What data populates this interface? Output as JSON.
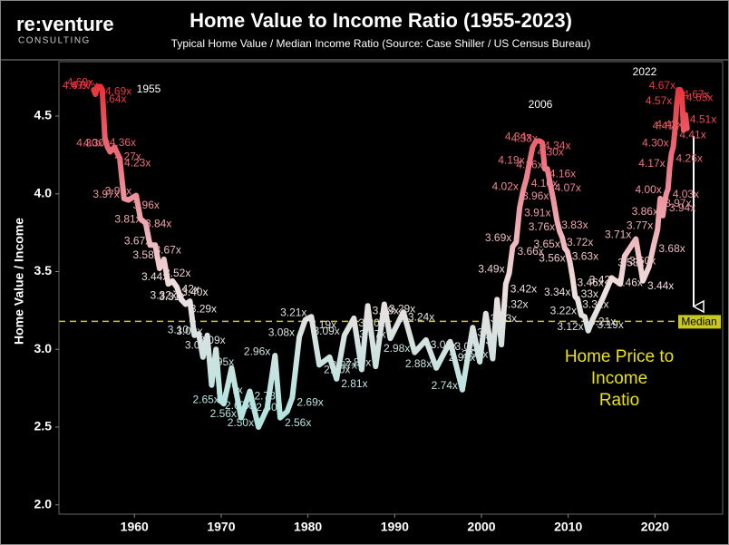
{
  "logo": {
    "name": "re:venture",
    "tagline": "CONSULTING"
  },
  "chart_data": {
    "type": "line",
    "title": "Home Value to Income Ratio (1955-2023)",
    "subtitle": "Typical Home Value / Median Income Ratio (Source: Case Shiller / US Census Bureau)",
    "y_label": "Home Value / Income",
    "xlim": [
      1951.3,
      2027.8
    ],
    "xticks": [
      1960,
      1970,
      1980,
      1990,
      2000,
      2010,
      2020
    ],
    "ylim": [
      1.94,
      4.85
    ],
    "yticks": [
      {
        "value": 2,
        "label": "2.0"
      },
      2.5,
      {
        "value": 3,
        "label": "3.0"
      },
      3.5,
      {
        "value": 4,
        "label": "4.0"
      },
      4.5
    ],
    "line_colors": [
      "#a0dcd8",
      "#b8e4e0",
      "#f0e0e0",
      "#ec7f8c",
      "#e81e25"
    ],
    "median": {
      "value": 3.18,
      "label": "Median",
      "color": "#c8c820"
    },
    "annotations": [
      "1955",
      "2006",
      "2022"
    ],
    "callout": [
      "Home Price to",
      "Income",
      "Ratio"
    ],
    "x": [
      1955.3,
      1955.5,
      1955.8,
      1956.1,
      1956.3,
      1956.6,
      1956.9,
      1957.2,
      1957.7,
      1958.3,
      1958.8,
      1959.3,
      1960.2,
      1960.7,
      1961.3,
      1961.8,
      1962.4,
      1962.9,
      1963.4,
      1963.9,
      1964.4,
      1964.9,
      1965.4,
      1965.9,
      1966.4,
      1966.9,
      1967.4,
      1967.9,
      1968.4,
      1968.9,
      1969.4,
      1969.9,
      1970.3,
      1971.2,
      1972.3,
      1973.3,
      1974.3,
      1975.3,
      1976.2,
      1976.8,
      1977.6,
      1978.2,
      1979.0,
      1979.7,
      1980.4,
      1981.3,
      1982.5,
      1983.3,
      1984.2,
      1985.3,
      1986.2,
      1986.9,
      1987.8,
      1988.8,
      1989.5,
      1991.0,
      1992.3,
      1993.6,
      1994.8,
      1996.4,
      1997.8,
      1999.0,
      1999.8,
      2000.5,
      2001.3,
      2001.8,
      2002.3,
      2002.8,
      2003.2,
      2003.6,
      2004.0,
      2004.4,
      2004.8,
      2005.2,
      2005.5,
      2005.9,
      2006.3,
      2006.7,
      2007.0,
      2007.3,
      2007.6,
      2007.9,
      2008.3,
      2008.7,
      2009.0,
      2009.3,
      2009.6,
      2009.9,
      2010.2,
      2010.5,
      2010.8,
      2011.1,
      2011.5,
      2011.9,
      2012.3,
      2012.8,
      2014.0,
      2015.0,
      2016.0,
      2016.5,
      2017.8,
      2018.6,
      2019.3,
      2019.9,
      2020.3,
      2020.6,
      2020.9,
      2021.1,
      2021.3,
      2021.5,
      2021.7,
      2021.9,
      2022.1,
      2022.3,
      2022.5,
      2022.7,
      2022.9,
      2023.1,
      2023.3,
      2023.5,
      2023.7
    ],
    "values": [
      4.67,
      4.64,
      4.69,
      4.69,
      4.67,
      4.36,
      4.3,
      4.27,
      4.3,
      4.23,
      3.97,
      3.96,
      3.99,
      3.84,
      3.81,
      3.67,
      3.67,
      3.52,
      3.58,
      3.42,
      3.44,
      3.4,
      3.32,
      3.29,
      3.31,
      3.09,
      3.1,
      2.95,
      3.09,
      2.77,
      3.0,
      2.67,
      2.65,
      2.88,
      2.56,
      2.73,
      2.5,
      2.62,
      2.96,
      2.56,
      2.6,
      2.69,
      3.08,
      3.19,
      3.21,
      2.9,
      2.95,
      2.81,
      3.09,
      3.2,
      2.87,
      3.28,
      2.89,
      3.29,
      3.07,
      3.24,
      2.98,
      3.06,
      2.88,
      3.05,
      2.74,
      3.14,
      2.92,
      3.23,
      2.94,
      3.32,
      3.03,
      3.42,
      3.49,
      3.66,
      3.69,
      3.91,
      4.02,
      4.1,
      4.19,
      4.3,
      4.34,
      4.34,
      4.33,
      4.16,
      4.16,
      4.07,
      3.96,
      3.83,
      3.76,
      3.72,
      3.65,
      3.63,
      3.56,
      3.46,
      3.34,
      3.32,
      3.22,
      3.21,
      3.12,
      3.19,
      3.33,
      3.46,
      3.42,
      3.6,
      3.71,
      3.44,
      3.53,
      3.68,
      3.77,
      3.97,
      3.86,
      3.94,
      4.0,
      4.03,
      4.17,
      4.26,
      4.3,
      4.41,
      4.57,
      4.67,
      4.67,
      4.65,
      4.41,
      4.51,
      4.42
    ],
    "value_labels": [
      "4.67x",
      "4.64x",
      "4.69x",
      "4.69x",
      "4.67x",
      "4.36x",
      "4.30x",
      "4.27x",
      "4.30x",
      "4.23x",
      "3.97x",
      "3.96x",
      "3.99x",
      "3.84x",
      "3.81x",
      "3.67x",
      "3.67x",
      "3.52x",
      "3.58x",
      "3.42x",
      "3.44x",
      "3.40x",
      "3.32x",
      "3.29x",
      "3.31x",
      "3.09x",
      "3.10x",
      "2.95x",
      "3.09x",
      "2.77x",
      "3.00x",
      "2.67x",
      "2.65x",
      null,
      "2.56x",
      "2.73x",
      "2.50x",
      null,
      "2.96x",
      "2.56x",
      "2.60x",
      "2.69x",
      "3.08x",
      "3.19x",
      "3.21x",
      "2.90x",
      null,
      "2.81x",
      "3.09x",
      "3.20x",
      "2.87x",
      "3.28x",
      "2.89x",
      "3.29x",
      "3.07x",
      "3.24x",
      "2.98x",
      "3.06x",
      "2.88x",
      "3.05x",
      "2.74x",
      "3.14x",
      "2.92x",
      "3.23x",
      "2.94x",
      "3.32x",
      "3.03x",
      "3.42x",
      "3.49x",
      "3.66x",
      "3.69x",
      "3.91x",
      "4.02x",
      "4.10x",
      "4.19x",
      "4.30x",
      "4.34x",
      "4.34x",
      "4.33x",
      "4.16x",
      "4.16x",
      "4.07x",
      "3.96x",
      "3.83x",
      "3.76x",
      "3.72x",
      "3.65x",
      "3.63x",
      "3.56x",
      "3.46x",
      "3.34x",
      "3.32x",
      "3.22x",
      "3.21x",
      "3.12x",
      "3.19x",
      "3.33x",
      "3.46x",
      "3.42x",
      "3.60x",
      "3.71x",
      "3.44x",
      "3.53x",
      "3.68x",
      "3.77x",
      "3.97x",
      "3.86x",
      "3.94x",
      "4.00x",
      "4.03x",
      "4.17x",
      "4.26x",
      "4.30x",
      "4.41x",
      "4.57x",
      "4.67x",
      "4.67x",
      "4.65x",
      "4.41x",
      "4.51x",
      "4.42x"
    ]
  }
}
